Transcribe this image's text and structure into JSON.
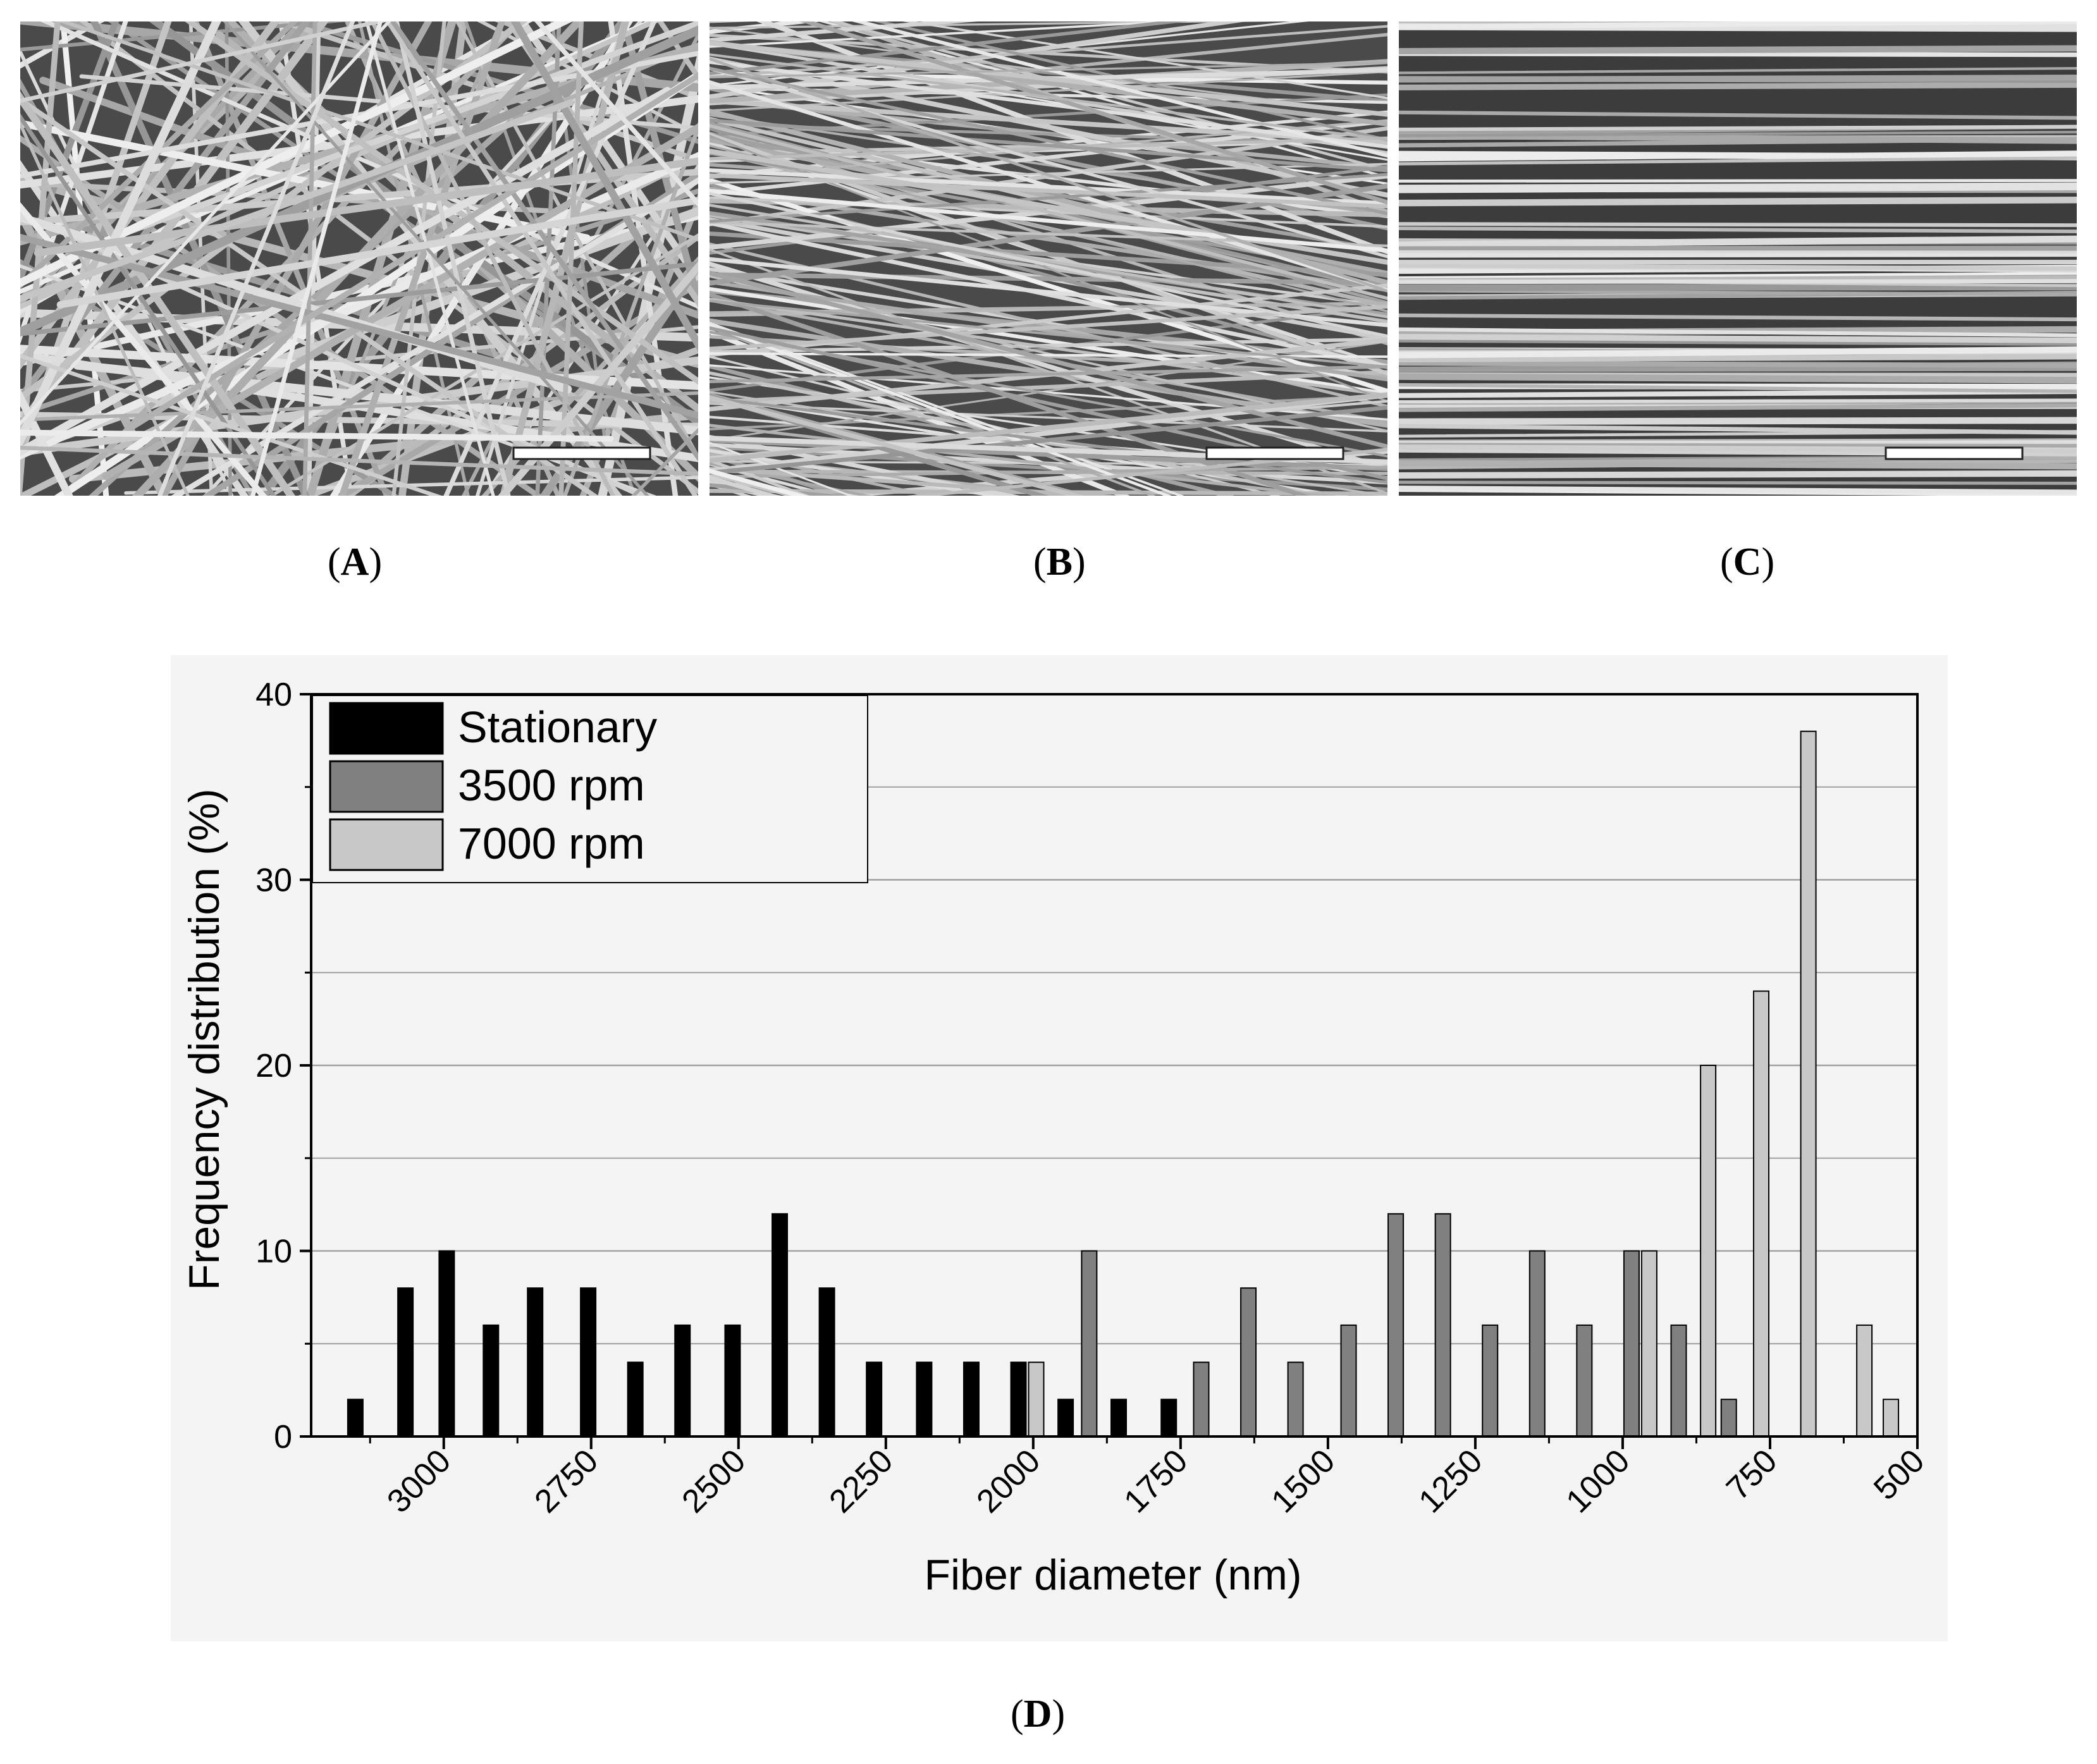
{
  "panels": [
    {
      "id": "A",
      "label": "A"
    },
    {
      "id": "B",
      "label": "B"
    },
    {
      "id": "C",
      "label": "C"
    }
  ],
  "chart_panel": {
    "label": "D"
  },
  "colors": {
    "stationary": "#000000",
    "rpm3500": "#808080",
    "rpm7000": "#c8c8c8",
    "grid": "#a0a0a0",
    "chart_bg": "#f4f4f4"
  },
  "chart_data": {
    "type": "bar",
    "title": "",
    "xlabel": "Fiber diameter (nm)",
    "ylabel": "Frequency distribution (%)",
    "xlim": [
      3225,
      500
    ],
    "ylim": [
      0,
      40
    ],
    "x_reversed": true,
    "xticks": [
      3000,
      2750,
      2500,
      2250,
      2000,
      1750,
      1500,
      1250,
      1000,
      750,
      500
    ],
    "yticks": [
      0,
      10,
      20,
      30,
      40
    ],
    "grid": true,
    "legend_position": "top-left",
    "series": [
      {
        "name": "Stationary",
        "x": [
          3150,
          3065,
          2995,
          2920,
          2845,
          2755,
          2675,
          2595,
          2510,
          2430,
          2350,
          2270,
          2185,
          2105,
          2025,
          1945,
          1855,
          1770
        ],
        "values": [
          2,
          8,
          10,
          6,
          8,
          8,
          4,
          6,
          6,
          12,
          8,
          4,
          4,
          4,
          4,
          2,
          2,
          2
        ]
      },
      {
        "name": "3500 rpm",
        "x": [
          1905,
          1715,
          1635,
          1555,
          1465,
          1385,
          1305,
          1225,
          1145,
          1065,
          985,
          905,
          820
        ],
        "values": [
          10,
          4,
          8,
          4,
          6,
          12,
          12,
          6,
          10,
          6,
          10,
          6,
          2
        ]
      },
      {
        "name": "7000 rpm",
        "x": [
          1995,
          955,
          855,
          765,
          685,
          590,
          545
        ],
        "values": [
          4,
          10,
          20,
          24,
          38,
          6,
          2
        ]
      }
    ]
  }
}
